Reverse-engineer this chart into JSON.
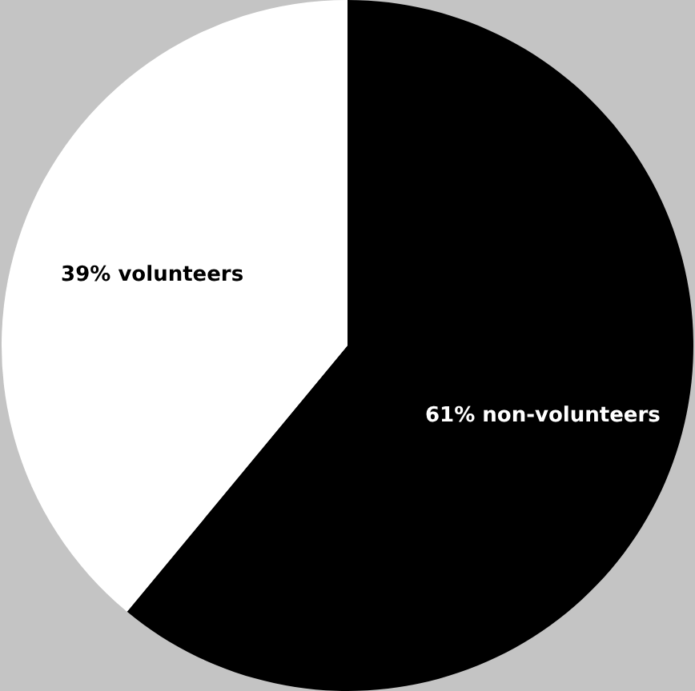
{
  "chart_data": {
    "type": "pie",
    "categories": [
      "61% non-volunteers",
      "39% volunteers"
    ],
    "values": [
      61,
      39
    ],
    "colors": [
      "#000000",
      "#ffffff"
    ],
    "legend": false
  }
}
